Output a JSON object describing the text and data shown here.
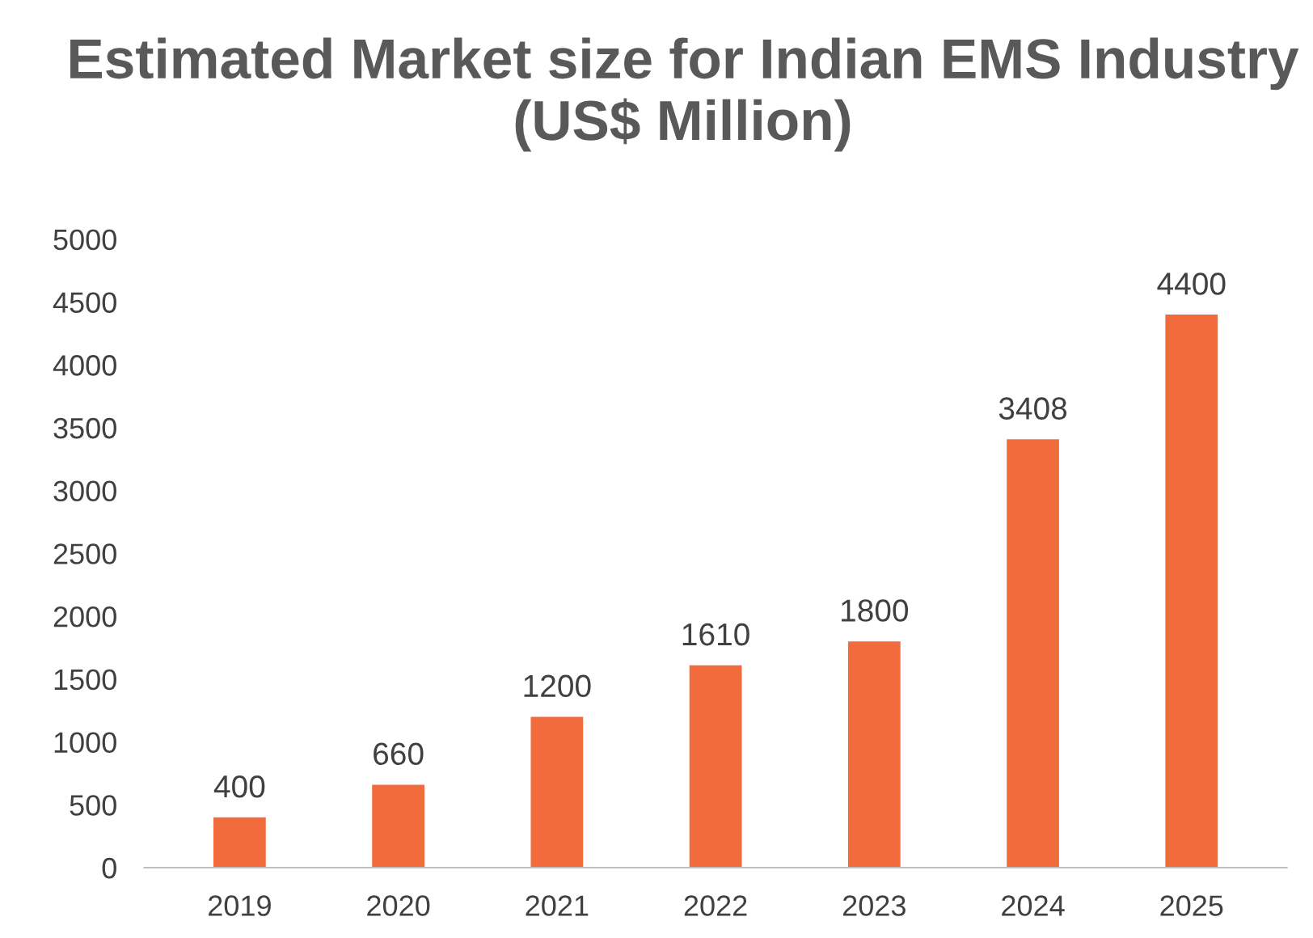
{
  "chart_data": {
    "type": "bar",
    "title": "Estimated Market size for Indian EMS Industry (US$ Million)",
    "categories": [
      "2019",
      "2020",
      "2021",
      "2022",
      "2023",
      "2024",
      "2025"
    ],
    "values": [
      400,
      660,
      1200,
      1610,
      1800,
      3408,
      4400
    ],
    "color": "#f26b3d",
    "ylim": [
      0,
      5000
    ],
    "yticks": [
      0,
      500,
      1000,
      1500,
      2000,
      2500,
      3000,
      3500,
      4000,
      4500,
      5000
    ],
    "grid": false,
    "data_labels": true,
    "legend": false
  }
}
